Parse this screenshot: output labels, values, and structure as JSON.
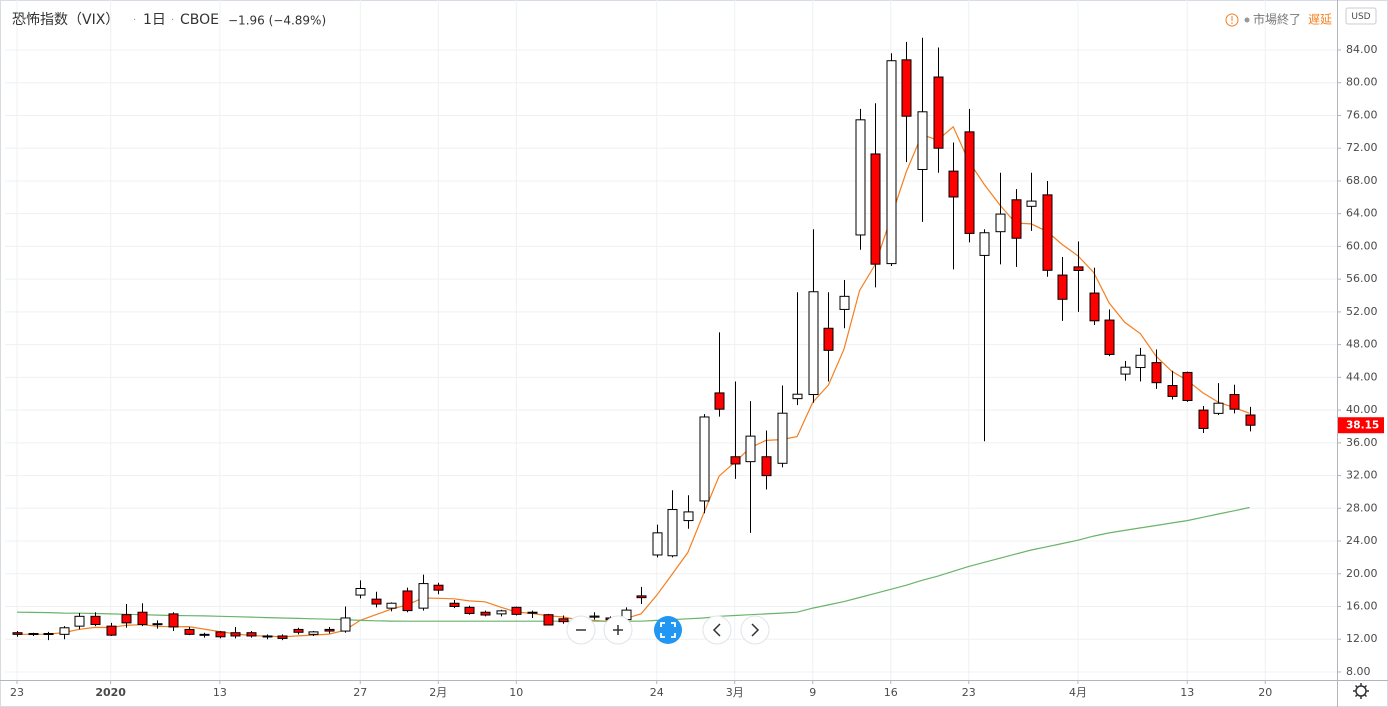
{
  "header": {
    "title": "恐怖指数（VIX）",
    "interval": "1日",
    "exchange": "CBOE",
    "change": "−1.96 (−4.89%)",
    "status": "市場終了",
    "delay": "遅延",
    "currency": "USD"
  },
  "chart_data": {
    "type": "candlestick",
    "up_color": "#ffffff",
    "down_color": "#ff0000",
    "wick_color": "#000000",
    "grid": true,
    "open": [
      12.8,
      12.7,
      12.7,
      12.6,
      13.6,
      14.8,
      13.6,
      15.0,
      15.3,
      13.9,
      15.1,
      13.2,
      12.6,
      12.9,
      12.8,
      12.8,
      12.4,
      12.4,
      13.2,
      12.6,
      13.2,
      13.0,
      17.4,
      16.9,
      15.8,
      17.9,
      15.8,
      18.6,
      16.4,
      15.9,
      15.3,
      15.1,
      15.9,
      15.3,
      15.0,
      14.5,
      13.9,
      14.7,
      14.6,
      14.4,
      17.3,
      22.3,
      22.2,
      26.5,
      28.9,
      42.1,
      34.3,
      33.7,
      34.3,
      33.5,
      41.4,
      41.9,
      50.0,
      52.3,
      61.4,
      71.3,
      57.9,
      82.8,
      69.4,
      80.7,
      69.2,
      74.0,
      58.9,
      61.8,
      65.7,
      64.9,
      66.3,
      56.5,
      57.5,
      54.3,
      51.0,
      44.4,
      45.2,
      45.8,
      43.0,
      44.6,
      40.0,
      39.6,
      41.9,
      39.4
    ],
    "high": [
      13.0,
      12.8,
      12.9,
      13.6,
      15.2,
      15.3,
      14.0,
      16.3,
      16.4,
      14.3,
      15.3,
      13.5,
      12.8,
      13.0,
      13.5,
      13.0,
      12.6,
      12.6,
      13.4,
      13.0,
      13.5,
      16.0,
      19.2,
      17.8,
      16.5,
      18.3,
      19.9,
      18.9,
      16.8,
      16.1,
      15.5,
      15.6,
      16.0,
      15.5,
      15.1,
      14.9,
      14.2,
      15.3,
      14.8,
      15.9,
      18.4,
      26.0,
      30.2,
      29.6,
      39.5,
      49.5,
      43.5,
      41.1,
      37.5,
      43.0,
      54.4,
      62.1,
      54.4,
      55.9,
      76.8,
      77.5,
      83.6,
      85.0,
      85.5,
      84.3,
      72.7,
      76.8,
      62.1,
      69.0,
      67.0,
      69.0,
      68.0,
      58.7,
      60.6,
      57.4,
      52.3,
      46.0,
      47.6,
      47.4,
      44.8,
      44.7,
      40.5,
      43.3,
      43.1,
      40.4
    ],
    "low": [
      12.3,
      12.4,
      11.9,
      12.0,
      13.2,
      13.6,
      12.4,
      13.4,
      13.6,
      13.3,
      13.0,
      12.5,
      12.2,
      12.1,
      12.1,
      12.2,
      12.0,
      11.9,
      12.6,
      12.4,
      12.7,
      12.8,
      17.0,
      15.9,
      15.4,
      15.3,
      15.5,
      17.5,
      15.8,
      15.0,
      14.8,
      14.8,
      14.9,
      14.6,
      13.7,
      13.9,
      13.4,
      14.4,
      14.0,
      14.1,
      16.3,
      22.0,
      22.0,
      25.5,
      27.4,
      39.2,
      31.6,
      25.0,
      30.3,
      33.0,
      40.6,
      40.9,
      43.5,
      50.0,
      59.6,
      55.0,
      57.6,
      70.3,
      63.0,
      69.0,
      57.2,
      60.5,
      36.2,
      57.8,
      57.5,
      61.9,
      56.3,
      50.9,
      52.0,
      50.4,
      46.6,
      43.6,
      43.5,
      42.6,
      41.3,
      41.0,
      37.2,
      39.4,
      39.6,
      37.4
    ],
    "close": [
      12.6,
      12.6,
      12.65,
      13.4,
      14.8,
      13.8,
      12.5,
      14.0,
      13.8,
      13.8,
      13.5,
      12.6,
      12.5,
      12.3,
      12.4,
      12.4,
      12.3,
      12.1,
      12.85,
      12.9,
      13.0,
      14.6,
      18.2,
      16.3,
      16.4,
      15.5,
      18.8,
      18.0,
      16.0,
      15.15,
      14.96,
      15.47,
      15.04,
      15.18,
      13.74,
      14.15,
      13.68,
      14.83,
      14.38,
      15.56,
      17.08,
      25.0,
      27.85,
      27.56,
      39.16,
      40.11,
      33.42,
      36.82,
      31.99,
      39.62,
      41.94,
      54.46,
      47.3,
      53.9,
      75.47,
      57.83,
      82.69,
      75.91,
      76.45,
      72.0,
      66.04,
      61.59,
      61.67,
      63.95,
      61.0,
      65.54,
      57.08,
      53.54,
      57.06,
      50.91,
      46.8,
      45.24,
      46.7,
      43.35,
      41.67,
      41.17,
      37.76,
      40.84,
      40.11,
      38.15
    ],
    "series": [
      {
        "color": "#f57f20",
        "values": [
          12.6,
          12.6,
          12.62,
          12.81,
          13.21,
          13.45,
          13.43,
          13.7,
          13.78,
          13.58,
          13.52,
          13.54,
          13.24,
          12.94,
          12.66,
          12.44,
          12.38,
          12.3,
          12.41,
          12.51,
          12.63,
          13.09,
          14.31,
          15.0,
          15.7,
          16.2,
          17.04,
          17.0,
          16.94,
          16.69,
          16.58,
          15.92,
          15.32,
          15.16,
          14.88,
          14.72,
          14.36,
          14.32,
          14.16,
          14.52,
          15.11,
          17.37,
          19.97,
          22.61,
          27.33,
          31.94,
          33.62,
          35.41,
          36.3,
          36.39,
          36.76,
          40.97,
          43.06,
          47.44,
          54.61,
          57.79,
          63.44,
          69.16,
          73.67,
          72.98,
          74.62,
          70.4,
          67.55,
          65.05,
          62.85,
          62.75,
          61.85,
          60.22,
          58.84,
          56.83,
          53.08,
          50.71,
          49.34,
          46.6,
          44.75,
          43.63,
          42.13,
          40.96,
          40.31,
          39.61
        ]
      },
      {
        "color": "#6ab36a",
        "values": [
          15.3,
          15.28,
          15.25,
          15.2,
          15.18,
          15.15,
          15.1,
          15.05,
          15.0,
          14.95,
          14.9,
          14.88,
          14.85,
          14.8,
          14.75,
          14.7,
          14.65,
          14.6,
          14.55,
          14.5,
          14.45,
          14.4,
          14.3,
          14.25,
          14.22,
          14.2,
          14.2,
          14.2,
          14.2,
          14.2,
          14.2,
          14.2,
          14.2,
          14.2,
          14.2,
          14.2,
          14.2,
          14.2,
          14.2,
          14.2,
          14.2,
          14.3,
          14.4,
          14.5,
          14.6,
          14.8,
          14.9,
          15.0,
          15.1,
          15.2,
          15.3,
          15.8,
          16.2,
          16.6,
          17.1,
          17.6,
          18.1,
          18.6,
          19.2,
          19.7,
          20.3,
          20.9,
          21.4,
          21.9,
          22.4,
          22.9,
          23.3,
          23.7,
          24.1,
          24.6,
          25.0,
          25.3,
          25.6,
          25.9,
          26.2,
          26.5,
          26.9,
          27.3,
          27.7,
          28.1
        ]
      }
    ],
    "xlim": [
      -0.77,
      84.6
    ],
    "xticks": [
      {
        "value": 0,
        "label": "23"
      },
      {
        "value": 6,
        "label": "2020"
      },
      {
        "value": 13,
        "label": "13"
      },
      {
        "value": 22,
        "label": "27"
      },
      {
        "value": 27,
        "label": "2月"
      },
      {
        "value": 32,
        "label": "10"
      },
      {
        "value": 41,
        "label": "24"
      },
      {
        "value": 46,
        "label": "3月"
      },
      {
        "value": 51,
        "label": "9"
      },
      {
        "value": 56,
        "label": "16"
      },
      {
        "value": 61,
        "label": "23"
      },
      {
        "value": 68,
        "label": "4月"
      },
      {
        "value": 75,
        "label": "13"
      },
      {
        "value": 80,
        "label": "20"
      }
    ],
    "ylim": [
      7.02,
      90.11
    ],
    "yticks": [
      {
        "value": 8,
        "label": "8.00"
      },
      {
        "value": 12,
        "label": "12.00"
      },
      {
        "value": 16,
        "label": "16.00"
      },
      {
        "value": 20,
        "label": "20.00"
      },
      {
        "value": 24,
        "label": "24.00"
      },
      {
        "value": 28,
        "label": "28.00"
      },
      {
        "value": 32,
        "label": "32.00"
      },
      {
        "value": 36,
        "label": "36.00"
      },
      {
        "value": 40,
        "label": "40.00"
      },
      {
        "value": 44,
        "label": "44.00"
      },
      {
        "value": 48,
        "label": "48.00"
      },
      {
        "value": 52,
        "label": "52.00"
      },
      {
        "value": 56,
        "label": "56.00"
      },
      {
        "value": 60,
        "label": "60.00"
      },
      {
        "value": 64,
        "label": "64.00"
      },
      {
        "value": 68,
        "label": "68.00"
      },
      {
        "value": 72,
        "label": "72.00"
      },
      {
        "value": 76,
        "label": "76.00"
      },
      {
        "value": 80,
        "label": "80.00"
      },
      {
        "value": 84,
        "label": "84.00"
      }
    ]
  }
}
